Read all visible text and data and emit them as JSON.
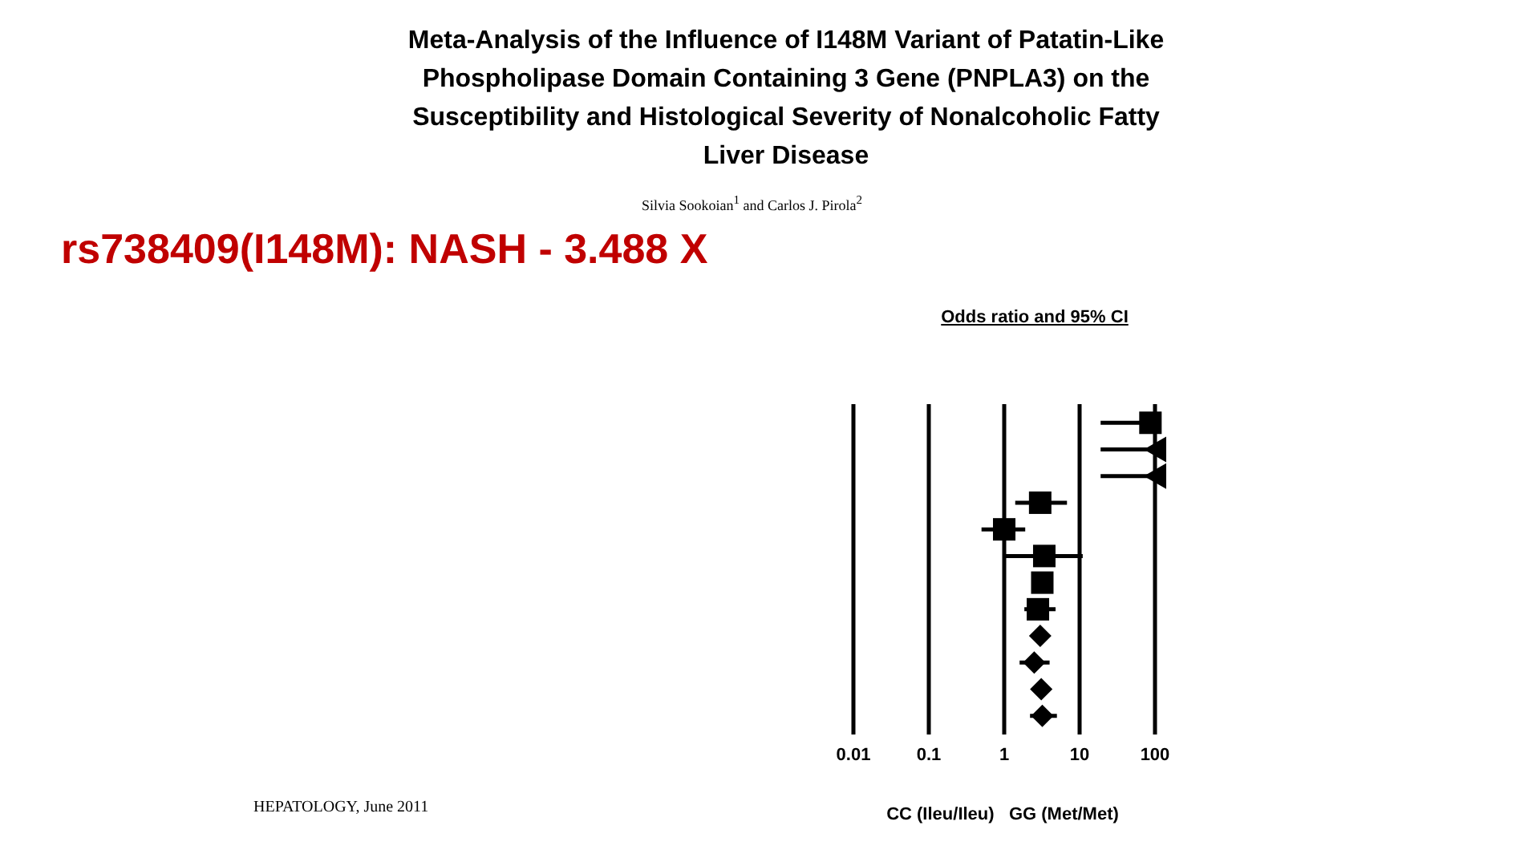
{
  "chart_data": {
    "type": "scatter",
    "orientation": "horizontal",
    "title": "Meta-Analysis of the Influence of I148M Variant of Patatin-Like Phospholipase Domain Containing 3 Gene (PNPLA3) on the Susceptibility and Histological Severity of Nonalcoholic Fatty Liver Disease",
    "subtitle": "rs738409(I148M): NASH - 3.488 X",
    "xlabel": "CC (Ileu/Ileu)   GG (Met/Met)",
    "annotations": [
      "Silvia Sookoian$^{1}$ and Carlos J. Pirola$^{2}$",
      "Odds ratio and 95% CI",
      "HEPATOLOGY, June 2011"
    ],
    "categories": [
      null,
      null,
      null,
      null,
      null,
      null,
      null,
      null,
      null,
      null,
      null,
      null
    ],
    "series": [
      {
        "marker": "square",
        "color": "#000000",
        "values": [
          87,
          null,
          null,
          3.0,
          1.0,
          3.4,
          3.2,
          2.8,
          null,
          null,
          null,
          null
        ],
        "errors": [
          [
            19,
            87
          ],
          null,
          null,
          [
            1.4,
            6.8
          ],
          [
            0.5,
            1.9
          ],
          [
            1.05,
            11
          ],
          null,
          [
            1.85,
            4.8
          ],
          null,
          null,
          null,
          null
        ]
      },
      {
        "marker": "triangle",
        "color": "#000000",
        "values": [
          null,
          100,
          100,
          null,
          null,
          null,
          null,
          null,
          null,
          null,
          null,
          null
        ],
        "errors": [
          null,
          [
            19,
            100
          ],
          [
            19,
            100
          ],
          null,
          null,
          null,
          null,
          null,
          null,
          null,
          null,
          null
        ]
      },
      {
        "marker": "diamond",
        "color": "#000000",
        "values": [
          null,
          null,
          null,
          null,
          null,
          null,
          null,
          null,
          3.0,
          2.5,
          3.1,
          3.2
        ],
        "errors": [
          null,
          null,
          null,
          null,
          null,
          null,
          null,
          null,
          [
            2.6,
            3.4
          ],
          [
            1.6,
            4.0
          ],
          [
            2.8,
            3.5
          ],
          [
            2.2,
            5.0
          ]
        ]
      }
    ],
    "log": "x",
    "xlim": [
      0.01,
      100
    ],
    "xticks": [
      0.01,
      0.1,
      1,
      10,
      100
    ],
    "grid": "x",
    "tick_labels": "x"
  }
}
